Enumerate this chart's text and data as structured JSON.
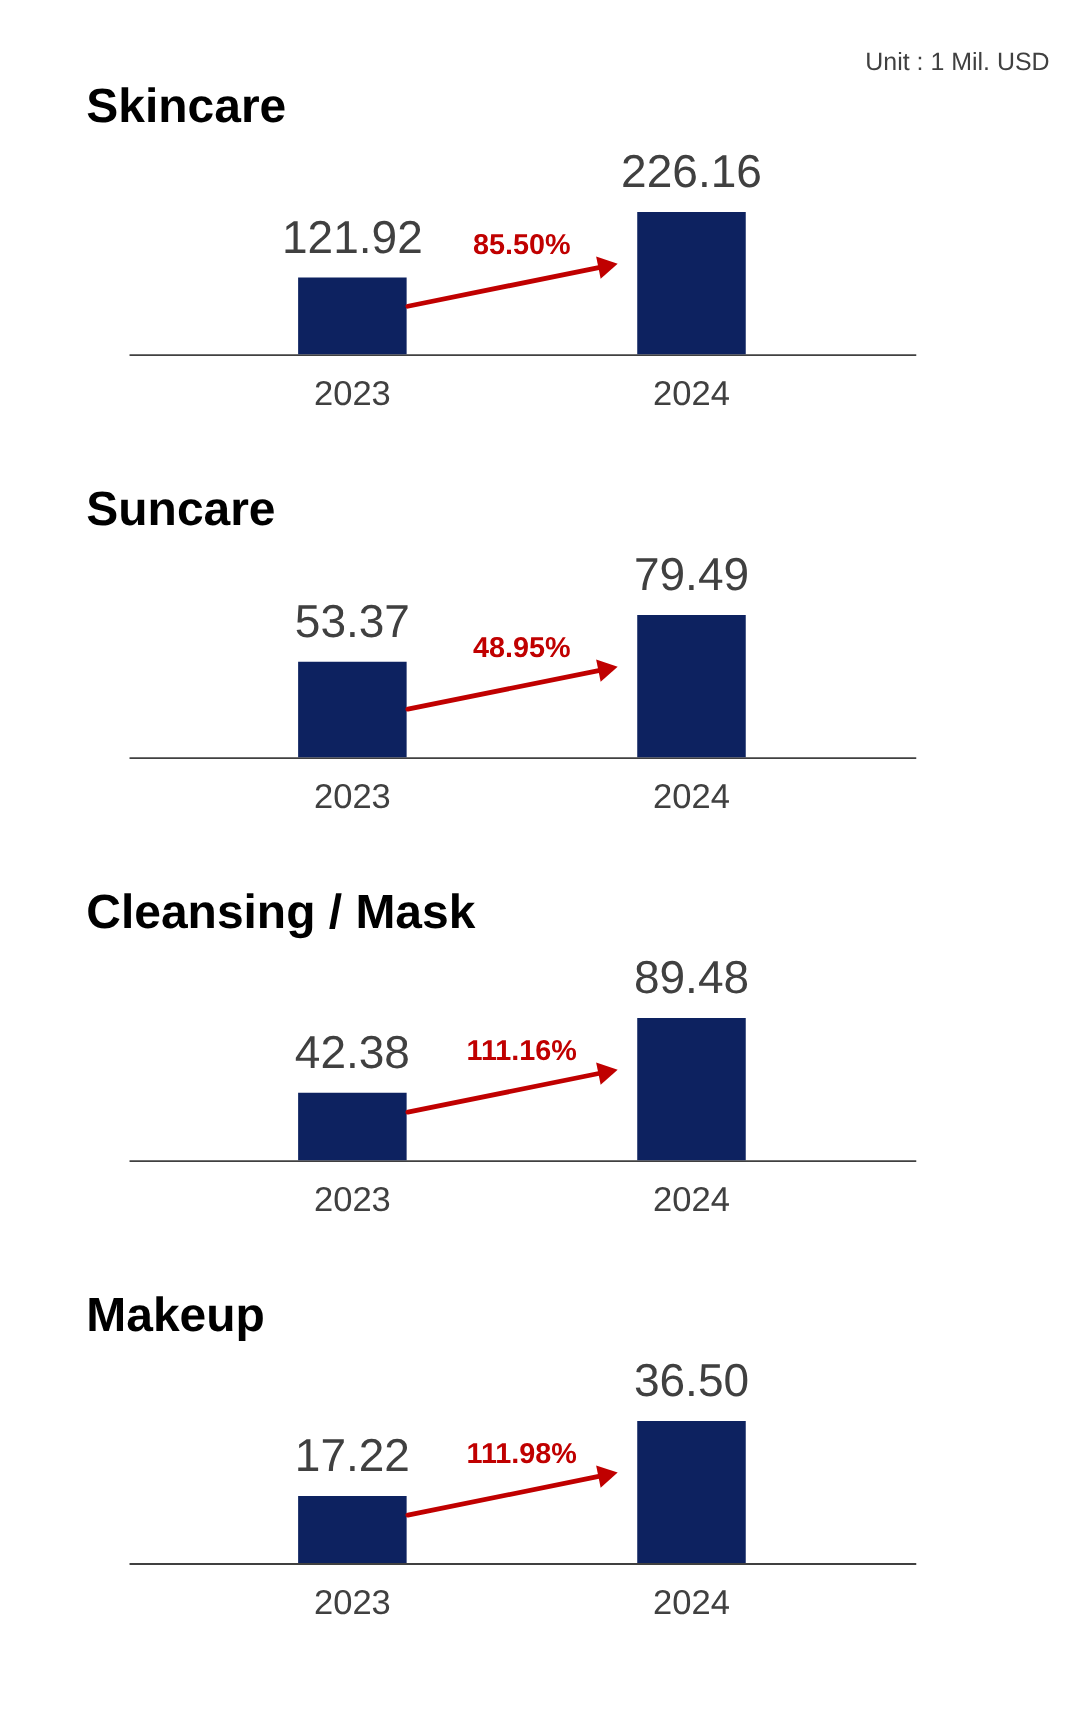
{
  "chart_data": [
    {
      "type": "bar",
      "title": "Skincare",
      "categories": [
        "2023",
        "2024"
      ],
      "values": [
        121.92,
        226.16
      ],
      "value_labels": [
        "121.92",
        "226.16"
      ],
      "color": "#0d2260",
      "annotations": [
        "Unit : 1 Mil. USD",
        "85.50%"
      ]
    },
    {
      "type": "bar",
      "title": "Suncare",
      "categories": [
        "2023",
        "2024"
      ],
      "values": [
        53.37,
        79.49
      ],
      "value_labels": [
        "53.37",
        "79.49"
      ],
      "color": "#0d2260",
      "annotations": [
        "48.95%"
      ]
    },
    {
      "type": "bar",
      "title": "Cleansing / Mask",
      "categories": [
        "2023",
        "2024"
      ],
      "values": [
        42.38,
        89.48
      ],
      "value_labels": [
        "42.38",
        "89.48"
      ],
      "color": "#0d2260",
      "annotations": [
        "111.16%"
      ]
    },
    {
      "type": "bar",
      "title": "Makeup",
      "categories": [
        "2023",
        "2024"
      ],
      "values": [
        17.22,
        36.5
      ],
      "value_labels": [
        "17.22",
        "36.50"
      ],
      "color": "#0d2260",
      "annotations": [
        "111.98%"
      ]
    }
  ]
}
